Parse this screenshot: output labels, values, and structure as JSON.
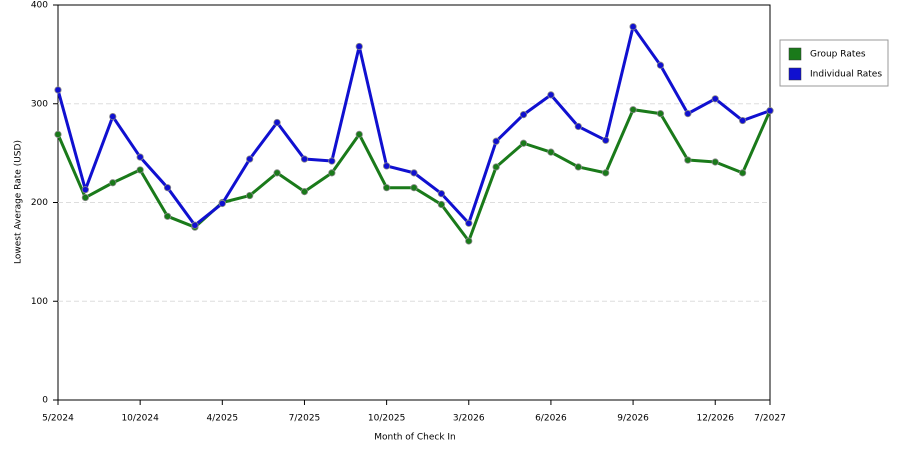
{
  "chart_data": {
    "type": "line",
    "x_label": "Month of Check In",
    "y_label": "Lowest Average Rate (USD)",
    "categories": [
      "5/2024",
      null,
      null,
      "10/2024",
      null,
      null,
      "4/2025",
      null,
      null,
      "7/2025",
      null,
      null,
      "10/2025",
      null,
      null,
      "3/2026",
      null,
      null,
      "6/2026",
      null,
      null,
      "9/2026",
      null,
      null,
      "12/2026",
      null,
      "7/2027"
    ],
    "series": [
      {
        "name": "Group Rates",
        "color": "#1a7a1a",
        "values": [
          269,
          205,
          220,
          233,
          186,
          175,
          200,
          207,
          230,
          211,
          230,
          269,
          215,
          215,
          198,
          161,
          236,
          260,
          251,
          236,
          230,
          294,
          290,
          243,
          241,
          230,
          293
        ]
      },
      {
        "name": "Individual Rates",
        "color": "#1010d0",
        "values": [
          314,
          213,
          287,
          246,
          215,
          177,
          199,
          244,
          281,
          244,
          242,
          358,
          237,
          230,
          209,
          179,
          262,
          289,
          309,
          277,
          263,
          378,
          339,
          290,
          305,
          283,
          293
        ]
      }
    ],
    "ylim": [
      0,
      400
    ],
    "yticks": [
      0,
      100,
      200,
      300,
      400
    ],
    "grid": true
  }
}
